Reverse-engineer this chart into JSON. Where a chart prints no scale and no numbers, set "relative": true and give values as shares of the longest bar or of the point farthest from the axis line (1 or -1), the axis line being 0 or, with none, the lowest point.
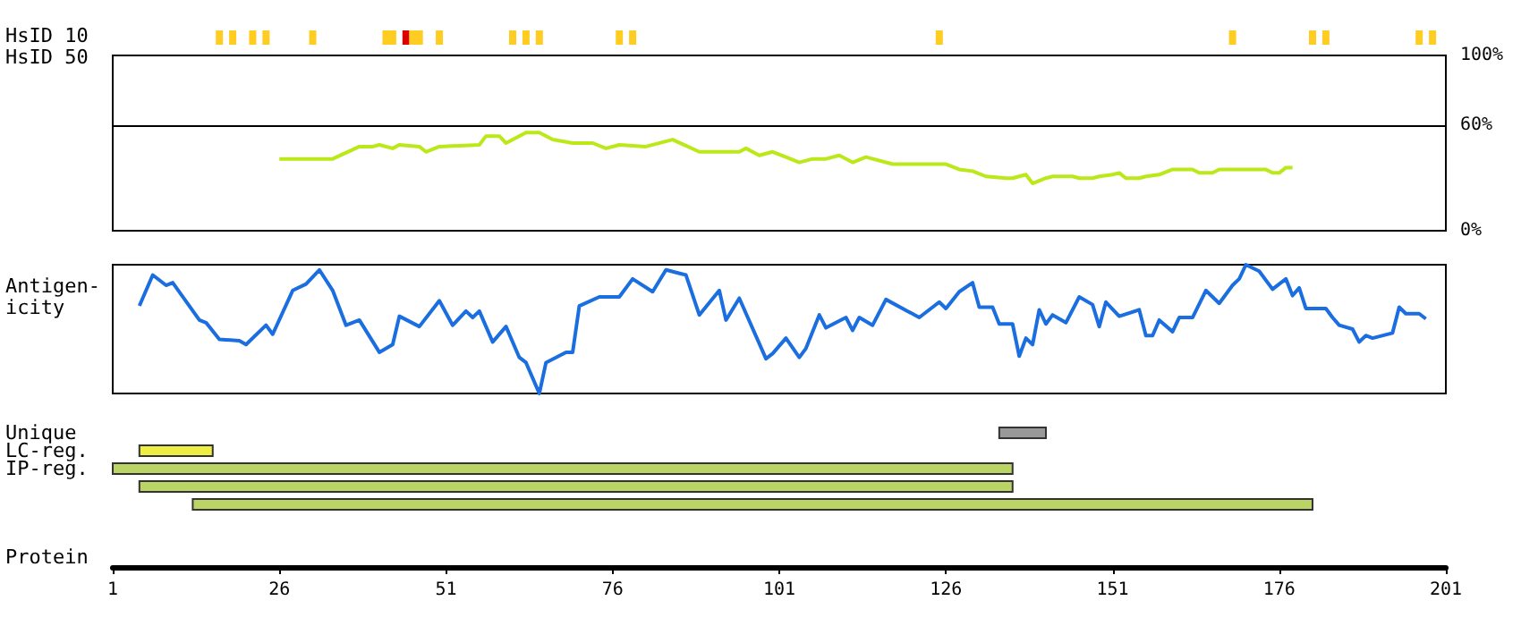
{
  "chart_data": [
    {
      "type": "bar",
      "ylabel": "HsID 10",
      "x": [
        17,
        19,
        22,
        24,
        31,
        42,
        43,
        45,
        46,
        47,
        50,
        61,
        63,
        65,
        77,
        79,
        125,
        169,
        181,
        183,
        197,
        199
      ],
      "values": [
        1,
        1,
        1,
        1,
        1,
        1,
        1,
        1,
        1,
        1,
        1,
        1,
        1,
        1,
        1,
        1,
        1,
        1,
        1,
        1,
        1,
        1
      ],
      "colors": [
        "#ffcc22",
        "#ffcc22",
        "#ffcc22",
        "#ffcc22",
        "#ffcc22",
        "#ffcc22",
        "#ffcc22",
        "#dd0000",
        "#ffcc22",
        "#ffcc22",
        "#ffcc22",
        "#ffcc22",
        "#ffcc22",
        "#ffcc22",
        "#ffcc22",
        "#ffcc22",
        "#ffcc22",
        "#ffcc22",
        "#ffcc22",
        "#ffcc22",
        "#ffcc22",
        "#ffcc22"
      ],
      "relative": true,
      "xlim": [
        1,
        201
      ],
      "tick_labels": false
    },
    {
      "type": "line",
      "ylabel": "HsID 50",
      "x": [
        26,
        34,
        38,
        40,
        41,
        43,
        44,
        47,
        48,
        50,
        56,
        57,
        59,
        60,
        63,
        65,
        67,
        70,
        73,
        75,
        77,
        81,
        85,
        89,
        95,
        96,
        98,
        100,
        102,
        104,
        106,
        108,
        110,
        112,
        114,
        118,
        126,
        128,
        130,
        132,
        135,
        136,
        138,
        139,
        141,
        142,
        145,
        146,
        148,
        149,
        151,
        152,
        153,
        155,
        156,
        158,
        160,
        163,
        164,
        166,
        167,
        174,
        175,
        176,
        177,
        178
      ],
      "values": [
        41,
        41,
        48,
        48,
        49,
        47,
        49,
        48,
        45,
        48,
        49,
        54,
        54,
        50,
        56,
        56,
        52,
        50,
        50,
        47,
        49,
        48,
        52,
        45,
        45,
        47,
        43,
        45,
        42,
        39,
        41,
        41,
        43,
        39,
        42,
        38,
        38,
        35,
        34,
        31,
        30,
        30,
        32,
        27,
        30,
        31,
        31,
        30,
        30,
        31,
        32,
        33,
        30,
        30,
        31,
        32,
        35,
        35,
        33,
        33,
        35,
        35,
        33,
        33,
        36,
        36
      ],
      "color": "#bbe818",
      "ylim": [
        0,
        100
      ],
      "yticks": [
        {
          "value": 0,
          "label": "0%"
        },
        {
          "value": 60,
          "label": "60%"
        },
        {
          "value": 100,
          "label": "100%"
        }
      ],
      "xlim": [
        1,
        201
      ],
      "tick_labels": "y",
      "ref_lines": [
        {
          "axis": "y",
          "value": 60,
          "color": "#000000"
        }
      ]
    },
    {
      "type": "line",
      "ylabel": "Antigen-icity",
      "x": [
        5,
        7,
        9,
        10,
        14,
        15,
        17,
        20,
        21,
        24,
        25,
        28,
        30,
        32,
        34,
        36,
        38,
        41,
        43,
        44,
        47,
        50,
        52,
        54,
        55,
        56,
        58,
        60,
        62,
        63,
        65,
        66,
        69,
        70,
        71,
        74,
        77,
        79,
        82,
        84,
        87,
        89,
        92,
        93,
        95,
        99,
        100,
        102,
        104,
        105,
        107,
        108,
        111,
        112,
        113,
        115,
        117,
        122,
        125,
        126,
        128,
        130,
        131,
        133,
        134,
        136,
        137,
        138,
        139,
        140,
        141,
        142,
        144,
        146,
        148,
        149,
        150,
        152,
        155,
        156,
        157,
        158,
        160,
        161,
        163,
        165,
        167,
        169,
        170,
        171,
        173,
        175,
        177,
        178,
        179,
        180,
        183,
        184,
        185,
        187,
        188,
        189,
        190,
        193,
        194,
        195,
        197,
        198
      ],
      "values": [
        0.68,
        0.92,
        0.84,
        0.86,
        0.57,
        0.55,
        0.42,
        0.41,
        0.38,
        0.53,
        0.46,
        0.8,
        0.85,
        0.96,
        0.8,
        0.53,
        0.57,
        0.32,
        0.38,
        0.6,
        0.52,
        0.72,
        0.53,
        0.64,
        0.59,
        0.64,
        0.4,
        0.52,
        0.28,
        0.24,
        0,
        0.24,
        0.32,
        0.32,
        0.68,
        0.75,
        0.75,
        0.89,
        0.79,
        0.96,
        0.92,
        0.61,
        0.8,
        0.57,
        0.74,
        0.27,
        0.31,
        0.43,
        0.28,
        0.35,
        0.61,
        0.51,
        0.59,
        0.49,
        0.59,
        0.53,
        0.73,
        0.59,
        0.71,
        0.66,
        0.79,
        0.86,
        0.67,
        0.67,
        0.54,
        0.54,
        0.29,
        0.43,
        0.38,
        0.65,
        0.54,
        0.61,
        0.55,
        0.75,
        0.69,
        0.52,
        0.71,
        0.6,
        0.65,
        0.45,
        0.45,
        0.57,
        0.48,
        0.59,
        0.59,
        0.8,
        0.7,
        0.84,
        0.89,
        1,
        0.95,
        0.81,
        0.89,
        0.76,
        0.82,
        0.66,
        0.66,
        0.59,
        0.53,
        0.5,
        0.4,
        0.45,
        0.43,
        0.47,
        0.67,
        0.62,
        0.62,
        0.58
      ],
      "color": "#1a6ee0",
      "relative": true,
      "xlim": [
        1,
        201
      ],
      "tick_labels": false
    },
    {
      "type": "bar",
      "orientation": "horizontal",
      "xlabel": "Protein",
      "categories": [
        "Unique",
        "LC-reg.",
        "IP-reg.",
        null,
        null
      ],
      "base": [
        134,
        5,
        1,
        5,
        13
      ],
      "values": [
        7,
        11,
        135,
        131,
        168
      ],
      "colors": [
        "#999999",
        "#eeee44",
        "#bbd466",
        "#bbd466",
        "#bbd466"
      ],
      "xlim": [
        1,
        201
      ],
      "xticks": [
        1,
        26,
        51,
        76,
        101,
        126,
        151,
        176,
        201
      ]
    }
  ]
}
